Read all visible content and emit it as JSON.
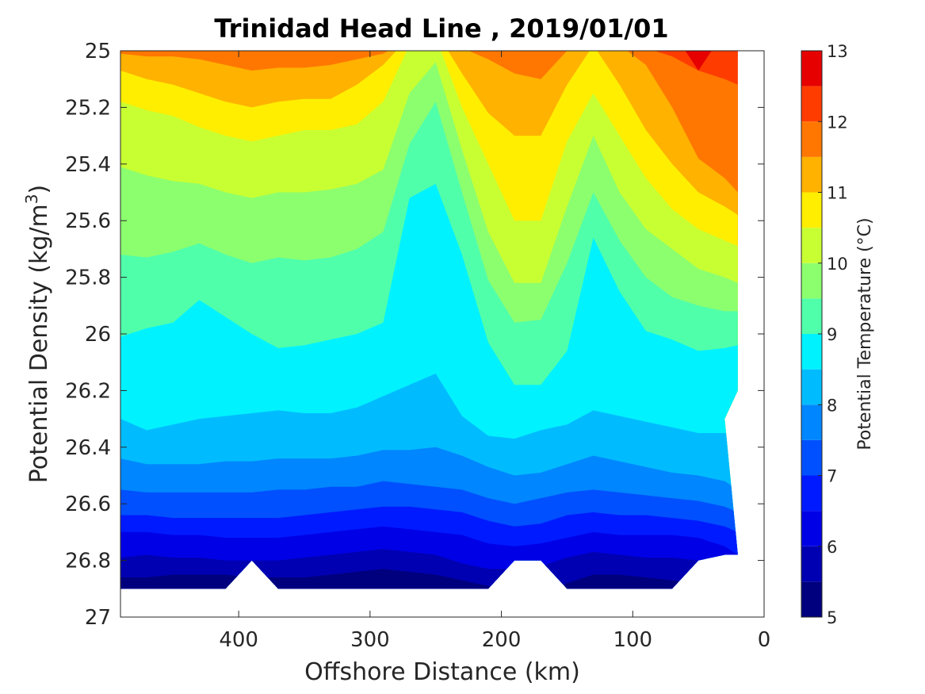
{
  "chart_data": {
    "type": "heatmap",
    "subtype": "filled-contour",
    "title": "Trinidad Head Line , 2019/01/01",
    "xlabel": "Offshore Distance (km)",
    "ylabel_main": "Potential Density (kg/m",
    "ylabel_sup": "3",
    "ylabel_close": ")",
    "colorbar_label": "Potential Temperature (°C)",
    "xlim": [
      490,
      0
    ],
    "x_reversed": true,
    "ylim": [
      25,
      27
    ],
    "y_reversed": true,
    "x_ticks": [
      400,
      300,
      200,
      100,
      0
    ],
    "y_ticks": [
      25,
      25.2,
      25.4,
      25.6,
      25.8,
      26,
      26.2,
      26.4,
      26.6,
      26.8,
      27
    ],
    "y_tick_labels": [
      "25",
      "25.2",
      "25.4",
      "25.6",
      "25.8",
      "26",
      "26.2",
      "26.4",
      "26.6",
      "26.8",
      "27"
    ],
    "colorbar_range": [
      5,
      13
    ],
    "colorbar_ticks": [
      5,
      6,
      7,
      8,
      9,
      10,
      11,
      12,
      13
    ],
    "contour_levels": [
      5,
      5.5,
      6,
      6.5,
      7,
      7.5,
      8,
      8.5,
      9,
      9.5,
      10,
      10.5,
      11,
      11.5,
      12,
      12.5,
      13
    ],
    "colormap": [
      "#00007f",
      "#0000b2",
      "#0000e6",
      "#001aff",
      "#0050ff",
      "#0086ff",
      "#00bcff",
      "#00f2ff",
      "#50ffaa",
      "#8cff6e",
      "#c8ff32",
      "#ffee00",
      "#ffb200",
      "#ff7700",
      "#ff3c00",
      "#e60000"
    ],
    "x": [
      490,
      470,
      450,
      430,
      410,
      390,
      370,
      350,
      330,
      310,
      290,
      270,
      250,
      230,
      210,
      190,
      170,
      150,
      130,
      110,
      90,
      70,
      50,
      30,
      20
    ],
    "isopycnals": [
      {
        "level": 5.5,
        "y": [
          26.86,
          26.86,
          26.85,
          26.85,
          26.85,
          26.86,
          26.86,
          26.86,
          26.85,
          26.84,
          26.83,
          26.84,
          26.85,
          26.87,
          26.89,
          26.91,
          26.91,
          26.88,
          26.85,
          26.85,
          26.86,
          26.87,
          26.88,
          26.9,
          26.92
        ]
      },
      {
        "level": 6,
        "y": [
          26.79,
          26.78,
          26.79,
          26.79,
          26.8,
          26.8,
          26.8,
          26.79,
          26.78,
          26.77,
          26.76,
          26.77,
          26.78,
          26.81,
          26.83,
          26.83,
          26.82,
          26.79,
          26.77,
          26.78,
          26.79,
          26.79,
          26.8,
          26.82,
          26.84
        ]
      },
      {
        "level": 6.5,
        "y": [
          26.7,
          26.7,
          26.71,
          26.71,
          26.72,
          26.72,
          26.72,
          26.71,
          26.7,
          26.69,
          26.68,
          26.69,
          26.7,
          26.71,
          26.74,
          26.75,
          26.74,
          26.72,
          26.7,
          26.71,
          26.71,
          26.71,
          26.72,
          26.75,
          26.78
        ]
      },
      {
        "level": 7,
        "y": [
          26.64,
          26.64,
          26.65,
          26.65,
          26.65,
          26.65,
          26.65,
          26.64,
          26.63,
          26.62,
          26.61,
          26.61,
          26.62,
          26.63,
          26.66,
          26.68,
          26.67,
          26.64,
          26.63,
          26.64,
          26.64,
          26.65,
          26.66,
          26.68,
          26.7
        ]
      },
      {
        "level": 7.5,
        "y": [
          26.55,
          26.56,
          26.56,
          26.56,
          26.56,
          26.56,
          26.55,
          26.55,
          26.54,
          26.54,
          26.52,
          26.53,
          26.54,
          26.55,
          26.58,
          26.6,
          26.58,
          26.56,
          26.55,
          26.56,
          26.57,
          26.58,
          26.59,
          26.61,
          26.63
        ]
      },
      {
        "level": 8,
        "y": [
          26.44,
          26.46,
          26.46,
          26.46,
          26.45,
          26.45,
          26.44,
          26.44,
          26.44,
          26.43,
          26.41,
          26.41,
          26.4,
          26.43,
          26.47,
          26.5,
          26.49,
          26.46,
          26.43,
          26.45,
          26.47,
          26.49,
          26.5,
          26.52,
          26.55
        ]
      },
      {
        "level": 8.5,
        "y": [
          26.3,
          26.34,
          26.32,
          26.3,
          26.29,
          26.28,
          26.27,
          26.28,
          26.28,
          26.26,
          26.22,
          26.18,
          26.14,
          26.29,
          26.36,
          26.37,
          26.34,
          26.32,
          26.27,
          26.29,
          26.31,
          26.33,
          26.35,
          26.35,
          26.36
        ]
      },
      {
        "level": 9,
        "y": [
          26.01,
          25.98,
          25.96,
          25.88,
          25.94,
          26.0,
          26.05,
          26.04,
          26.02,
          26.0,
          25.96,
          25.52,
          25.47,
          25.72,
          26.03,
          26.18,
          26.18,
          26.06,
          25.66,
          25.85,
          25.99,
          26.02,
          26.06,
          26.05,
          26.04
        ]
      },
      {
        "level": 9.5,
        "y": [
          25.72,
          25.73,
          25.71,
          25.68,
          25.72,
          25.75,
          25.73,
          25.74,
          25.73,
          25.7,
          25.64,
          25.33,
          25.18,
          25.5,
          25.81,
          25.96,
          25.95,
          25.75,
          25.5,
          25.67,
          25.8,
          25.87,
          25.9,
          25.92,
          25.92
        ]
      },
      {
        "level": 10,
        "y": [
          25.41,
          25.44,
          25.46,
          25.47,
          25.5,
          25.52,
          25.5,
          25.5,
          25.49,
          25.47,
          25.42,
          25.15,
          25.04,
          25.35,
          25.64,
          25.82,
          25.82,
          25.55,
          25.3,
          25.5,
          25.63,
          25.7,
          25.77,
          25.8,
          25.82
        ]
      },
      {
        "level": 10.5,
        "y": [
          25.18,
          25.21,
          25.23,
          25.27,
          25.3,
          25.32,
          25.3,
          25.28,
          25.28,
          25.26,
          25.18,
          24.98,
          24.95,
          25.2,
          25.4,
          25.6,
          25.6,
          25.32,
          25.15,
          25.3,
          25.45,
          25.56,
          25.63,
          25.67,
          25.69
        ]
      },
      {
        "level": 11,
        "y": [
          25.07,
          25.1,
          25.12,
          25.15,
          25.18,
          25.2,
          25.18,
          25.17,
          25.17,
          25.12,
          25.05,
          24.95,
          24.93,
          25.08,
          25.22,
          25.3,
          25.3,
          25.12,
          24.98,
          25.12,
          25.28,
          25.4,
          25.5,
          25.55,
          25.58
        ]
      },
      {
        "level": 11.5,
        "y": [
          25.01,
          25.02,
          25.02,
          25.03,
          25.05,
          25.07,
          25.06,
          25.06,
          25.05,
          25.03,
          25.01,
          24.96,
          24.95,
          24.99,
          25.03,
          25.08,
          25.1,
          25.0,
          24.97,
          24.98,
          25.05,
          25.2,
          25.38,
          25.45,
          25.5
        ]
      },
      {
        "level": 12,
        "y": [
          24.97,
          24.98,
          24.99,
          24.99,
          24.99,
          24.99,
          24.99,
          24.99,
          24.99,
          24.99,
          24.99,
          24.97,
          24.96,
          24.97,
          24.98,
          24.98,
          24.98,
          24.97,
          24.96,
          24.97,
          24.99,
          25.02,
          25.07,
          25.1,
          25.12
        ]
      }
    ],
    "bottom_boundary": [
      26.9,
      26.9,
      26.9,
      26.9,
      26.9,
      26.8,
      26.9,
      26.9,
      26.9,
      26.9,
      26.9,
      26.9,
      26.9,
      26.9,
      26.9,
      26.8,
      26.8,
      26.9,
      26.9,
      26.9,
      26.9,
      26.9,
      26.8,
      26.78,
      26.78
    ],
    "right_edge": {
      "x_top": 20,
      "x_bottom": 30,
      "y_low": 26.2,
      "y_step": 26.3
    }
  }
}
